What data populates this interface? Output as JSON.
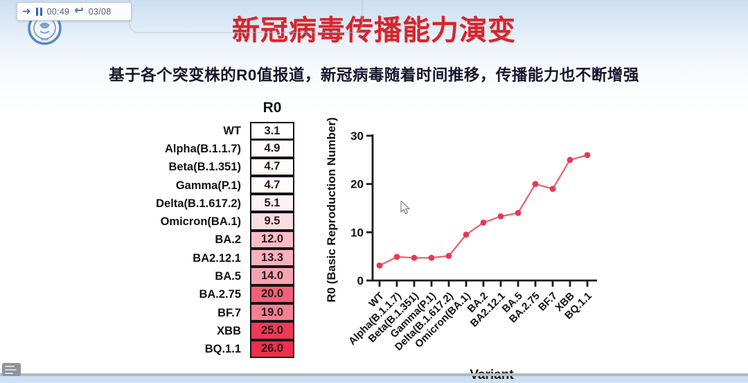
{
  "player": {
    "current_time": "00:49",
    "total_time": "03/08",
    "icons": [
      "forward-arrow-icon",
      "pause-icon",
      "undo-arrow-icon"
    ]
  },
  "slide": {
    "title": "新冠病毒传播能力演变",
    "subtitle": "基于各个突变株的R0值报道，新冠病毒随着时间推移，传播能力也不断增强",
    "title_color": "#d5262c"
  },
  "table": {
    "header": "R0",
    "rows": [
      {
        "label": "WT",
        "value": "3.1",
        "color": "#ffffff"
      },
      {
        "label": "Alpha(B.1.1.7)",
        "value": "4.9",
        "color": "#fefbfb"
      },
      {
        "label": "Beta(B.1.351)",
        "value": "4.7",
        "color": "#fefbfb"
      },
      {
        "label": "Gamma(P.1)",
        "value": "4.7",
        "color": "#fefbfb"
      },
      {
        "label": "Delta(B.1.617.2)",
        "value": "5.1",
        "color": "#fdf2f3"
      },
      {
        "label": "Omicron(BA.1)",
        "value": "9.5",
        "color": "#fadde1"
      },
      {
        "label": "BA.2",
        "value": "12.0",
        "color": "#f8bcc5"
      },
      {
        "label": "BA2.12.1",
        "value": "13.3",
        "color": "#f8b2bd"
      },
      {
        "label": "BA.5",
        "value": "14.0",
        "color": "#f6a3b1"
      },
      {
        "label": "BA.2.75",
        "value": "20.0",
        "color": "#f26076"
      },
      {
        "label": "BF.7",
        "value": "19.0",
        "color": "#f57f90"
      },
      {
        "label": "XBB",
        "value": "25.0",
        "color": "#ef3a55"
      },
      {
        "label": "BQ.1.1",
        "value": "26.0",
        "color": "#ee2e4a"
      }
    ]
  },
  "chart_data": {
    "type": "line",
    "categories": [
      "WT",
      "Alpha(B.1.1.7)",
      "Beta(B.1.351)",
      "Gamma(P.1)",
      "Delta(B.1.617.2)",
      "Omicron(BA.1)",
      "BA.2",
      "BA2.12.1",
      "BA.5",
      "BA.2.75",
      "BF.7",
      "XBB",
      "BQ.1.1"
    ],
    "values": [
      3.1,
      4.9,
      4.7,
      4.7,
      5.1,
      9.5,
      12.0,
      13.3,
      14.0,
      20.0,
      19.0,
      25.0,
      26.0
    ],
    "title": "",
    "xlabel": "Variant",
    "ylabel": "R0 (Basic Reproduction Number)",
    "ylim": [
      0,
      30
    ],
    "yticks": [
      0,
      10,
      20,
      30
    ],
    "grid": false,
    "legend": "none",
    "line_color": "#ee6072",
    "marker_color": "#e53a52",
    "axis_color": "#1b1b1e"
  }
}
